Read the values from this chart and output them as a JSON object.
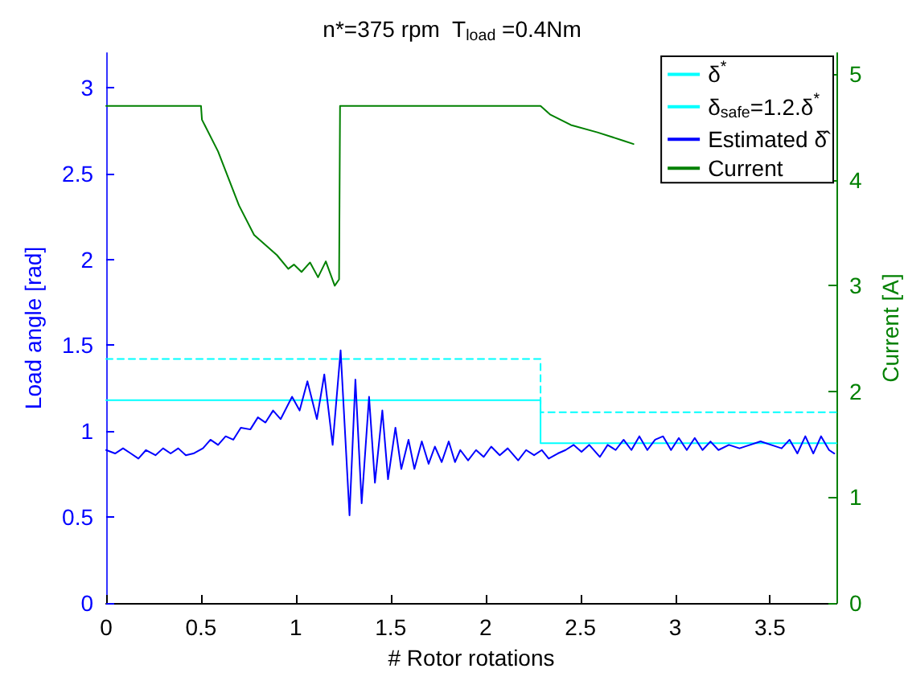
{
  "chart_data": {
    "type": "line",
    "title": "n*=375 rpm  T$_{load}$ =0.4Nm",
    "xlabel": "# Rotor rotations",
    "ylabel": "Load angle [rad]",
    "y2label": "Current [A]",
    "xlim": [
      0,
      3.85
    ],
    "xticks": [
      0,
      0.5,
      1,
      1.5,
      2,
      2.5,
      3,
      3.5
    ],
    "ylim": [
      0,
      3.2
    ],
    "yticks": [
      0,
      0.5,
      1,
      1.5,
      2,
      2.5,
      3
    ],
    "y2lim": [
      0,
      5.2
    ],
    "y2ticks": [
      0,
      1,
      2,
      3,
      4,
      5
    ],
    "grid": false,
    "legend": "top right",
    "marker": "none",
    "series": [
      {
        "name": "δ$^{*}$",
        "type": "step",
        "color": "#00ffff",
        "line_style": "solid",
        "x": [
          0,
          2.29,
          3.85
        ],
        "values": [
          1.18,
          0.93,
          0.93
        ]
      },
      {
        "name": "δ$_{safe}$=1.2.δ$^{*}$",
        "type": "step",
        "color": "#00ffff",
        "line_style": "dashed",
        "x": [
          0,
          2.29,
          3.85
        ],
        "values": [
          1.42,
          1.11,
          1.11
        ]
      },
      {
        "name": "Estimated δ̂",
        "type": "line",
        "color": "#0000ff",
        "line_style": "solid",
        "x": [
          0,
          0.047,
          0.089,
          0.13,
          0.17,
          0.21,
          0.26,
          0.3,
          0.34,
          0.38,
          0.42,
          0.46,
          0.51,
          0.55,
          0.59,
          0.63,
          0.67,
          0.71,
          0.76,
          0.8,
          0.84,
          0.88,
          0.92,
          0.98,
          1.02,
          1.061,
          1.111,
          1.15,
          1.194,
          1.236,
          1.283,
          1.314,
          1.347,
          1.386,
          1.417,
          1.456,
          1.486,
          1.525,
          1.556,
          1.594,
          1.625,
          1.664,
          1.7,
          1.733,
          1.769,
          1.806,
          1.839,
          1.867,
          1.908,
          1.95,
          1.99,
          2.03,
          2.075,
          2.117,
          2.172,
          2.214,
          2.256,
          2.297,
          2.333,
          2.381,
          2.422,
          2.464,
          2.506,
          2.547,
          2.603,
          2.644,
          2.686,
          2.728,
          2.769,
          2.811,
          2.853,
          2.894,
          2.936,
          2.978,
          3.019,
          3.061,
          3.103,
          3.144,
          3.186,
          3.228,
          3.283,
          3.339,
          3.394,
          3.45,
          3.506,
          3.561,
          3.603,
          3.644,
          3.686,
          3.728,
          3.769,
          3.811,
          3.839
        ],
        "values": [
          0.89,
          0.87,
          0.9,
          0.87,
          0.84,
          0.89,
          0.86,
          0.9,
          0.87,
          0.9,
          0.86,
          0.87,
          0.9,
          0.95,
          0.92,
          0.97,
          0.95,
          1.02,
          1.01,
          1.08,
          1.05,
          1.12,
          1.07,
          1.2,
          1.12,
          1.29,
          1.07,
          1.33,
          0.92,
          1.47,
          0.51,
          1.3,
          0.58,
          1.2,
          0.7,
          1.12,
          0.72,
          1.02,
          0.78,
          0.95,
          0.78,
          0.94,
          0.81,
          0.91,
          0.82,
          0.94,
          0.82,
          0.89,
          0.83,
          0.89,
          0.85,
          0.91,
          0.86,
          0.9,
          0.83,
          0.89,
          0.86,
          0.89,
          0.84,
          0.87,
          0.89,
          0.92,
          0.88,
          0.92,
          0.85,
          0.92,
          0.89,
          0.95,
          0.89,
          0.97,
          0.89,
          0.95,
          0.97,
          0.89,
          0.96,
          0.89,
          0.96,
          0.89,
          0.94,
          0.89,
          0.92,
          0.9,
          0.92,
          0.94,
          0.92,
          0.9,
          0.95,
          0.87,
          0.97,
          0.87,
          0.97,
          0.89,
          0.87
        ]
      },
      {
        "name": "Current",
        "type": "line",
        "axis": "y2",
        "color": "#008000",
        "line_style": "solid",
        "x": [
          0,
          0.5,
          0.505,
          0.59,
          0.7,
          0.78,
          0.9,
          0.96,
          0.99,
          1.03,
          1.075,
          1.117,
          1.158,
          1.205,
          1.228,
          1.233,
          2.29,
          2.34,
          2.45,
          2.59,
          2.73,
          2.78
        ],
        "values": [
          4.7,
          4.7,
          4.57,
          4.27,
          3.76,
          3.48,
          3.29,
          3.16,
          3.2,
          3.13,
          3.22,
          3.08,
          3.23,
          3.0,
          3.06,
          4.7,
          4.7,
          4.62,
          4.52,
          4.45,
          4.37,
          4.34
        ]
      }
    ]
  }
}
